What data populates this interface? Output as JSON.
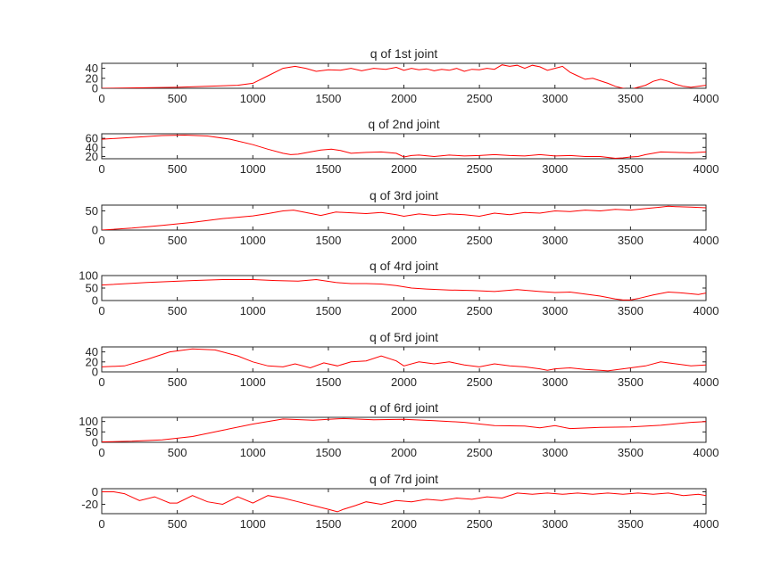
{
  "figure": {
    "background": "#ffffff",
    "line_color": "#ff0000",
    "axis_color": "#262626"
  },
  "chart_data": [
    {
      "type": "line",
      "title": "q of 1st joint",
      "xlim": [
        0,
        4000
      ],
      "ylim": [
        0,
        50
      ],
      "xticks": [
        0,
        500,
        1000,
        1500,
        2000,
        2500,
        3000,
        3500,
        4000
      ],
      "yticks": [
        0,
        20,
        40
      ],
      "x": [
        0,
        500,
        900,
        1000,
        1100,
        1200,
        1280,
        1350,
        1420,
        1500,
        1580,
        1650,
        1720,
        1800,
        1880,
        1950,
        2000,
        2050,
        2100,
        2150,
        2200,
        2250,
        2300,
        2350,
        2400,
        2450,
        2500,
        2550,
        2600,
        2650,
        2700,
        2750,
        2800,
        2850,
        2900,
        2950,
        3000,
        3050,
        3100,
        3150,
        3200,
        3250,
        3300,
        3350,
        3400,
        3450,
        3500,
        3550,
        3600,
        3650,
        3700,
        3750,
        3800,
        3850,
        3900,
        3950,
        4000
      ],
      "y": [
        0,
        2,
        6,
        10,
        25,
        40,
        44,
        40,
        34,
        37,
        36,
        40,
        35,
        40,
        38,
        42,
        36,
        40,
        37,
        39,
        35,
        38,
        36,
        40,
        34,
        38,
        37,
        40,
        38,
        47,
        44,
        46,
        40,
        46,
        43,
        36,
        40,
        44,
        32,
        25,
        18,
        20,
        15,
        10,
        4,
        0,
        -2,
        2,
        6,
        14,
        18,
        14,
        8,
        4,
        2,
        4,
        6
      ]
    },
    {
      "type": "line",
      "title": "q of 2nd joint",
      "xlim": [
        0,
        4000
      ],
      "ylim": [
        15,
        70
      ],
      "xticks": [
        0,
        500,
        1000,
        1500,
        2000,
        2500,
        3000,
        3500,
        4000
      ],
      "yticks": [
        20,
        40,
        60
      ],
      "x": [
        0,
        200,
        400,
        550,
        700,
        850,
        1000,
        1100,
        1200,
        1250,
        1300,
        1380,
        1450,
        1520,
        1580,
        1650,
        1750,
        1850,
        1950,
        2000,
        2050,
        2100,
        2200,
        2300,
        2400,
        2500,
        2600,
        2700,
        2800,
        2900,
        3000,
        3100,
        3200,
        3300,
        3400,
        3450,
        3500,
        3550,
        3600,
        3700,
        3800,
        3900,
        4000
      ],
      "y": [
        58,
        62,
        66,
        67,
        65,
        58,
        46,
        36,
        27,
        24,
        25,
        30,
        34,
        36,
        33,
        27,
        29,
        30,
        27,
        19,
        22,
        23,
        20,
        23,
        21,
        22,
        24,
        22,
        21,
        24,
        21,
        22,
        20,
        20,
        16,
        17,
        19,
        20,
        24,
        30,
        29,
        28,
        30
      ]
    },
    {
      "type": "line",
      "title": "q of 3rd joint",
      "xlim": [
        0,
        4000
      ],
      "ylim": [
        0,
        65
      ],
      "xticks": [
        0,
        500,
        1000,
        1500,
        2000,
        2500,
        3000,
        3500,
        4000
      ],
      "yticks": [
        0,
        50
      ],
      "x": [
        0,
        200,
        400,
        600,
        800,
        1000,
        1100,
        1200,
        1270,
        1350,
        1450,
        1550,
        1650,
        1750,
        1850,
        1950,
        2000,
        2100,
        2200,
        2300,
        2400,
        2500,
        2600,
        2700,
        2800,
        2900,
        3000,
        3100,
        3200,
        3300,
        3400,
        3500,
        3600,
        3700,
        3750,
        3800,
        3900,
        4000
      ],
      "y": [
        0,
        5,
        12,
        20,
        30,
        37,
        43,
        50,
        52,
        46,
        38,
        47,
        45,
        43,
        46,
        40,
        36,
        42,
        38,
        42,
        40,
        36,
        44,
        40,
        46,
        44,
        50,
        48,
        52,
        50,
        54,
        52,
        56,
        60,
        62,
        61,
        60,
        58
      ]
    },
    {
      "type": "line",
      "title": "q of 4rd joint",
      "xlim": [
        0,
        4000
      ],
      "ylim": [
        0,
        100
      ],
      "xticks": [
        0,
        500,
        1000,
        1500,
        2000,
        2500,
        3000,
        3500,
        4000
      ],
      "yticks": [
        0,
        50,
        100
      ],
      "x": [
        0,
        300,
        600,
        800,
        1000,
        1150,
        1300,
        1420,
        1550,
        1650,
        1750,
        1850,
        1950,
        2050,
        2150,
        2300,
        2450,
        2600,
        2750,
        2900,
        3000,
        3100,
        3200,
        3300,
        3400,
        3450,
        3500,
        3550,
        3650,
        3750,
        3850,
        3950,
        4000
      ],
      "y": [
        62,
        72,
        80,
        84,
        84,
        80,
        78,
        84,
        72,
        68,
        68,
        66,
        60,
        50,
        46,
        42,
        40,
        36,
        44,
        36,
        32,
        34,
        26,
        18,
        6,
        2,
        2,
        8,
        22,
        34,
        30,
        24,
        30
      ]
    },
    {
      "type": "line",
      "title": "q of 5rd joint",
      "xlim": [
        0,
        4000
      ],
      "ylim": [
        0,
        50
      ],
      "xticks": [
        0,
        500,
        1000,
        1500,
        2000,
        2500,
        3000,
        3500,
        4000
      ],
      "yticks": [
        0,
        20,
        40
      ],
      "x": [
        0,
        150,
        300,
        450,
        600,
        750,
        900,
        1000,
        1100,
        1200,
        1280,
        1380,
        1470,
        1560,
        1650,
        1750,
        1850,
        1950,
        2000,
        2100,
        2200,
        2300,
        2400,
        2500,
        2600,
        2700,
        2800,
        2900,
        2950,
        3000,
        3100,
        3200,
        3300,
        3350,
        3400,
        3500,
        3600,
        3700,
        3800,
        3900,
        4000
      ],
      "y": [
        10,
        12,
        25,
        40,
        46,
        44,
        32,
        20,
        12,
        10,
        16,
        8,
        18,
        12,
        20,
        22,
        32,
        22,
        12,
        20,
        16,
        20,
        14,
        10,
        16,
        12,
        10,
        6,
        3,
        6,
        8,
        5,
        3,
        2,
        4,
        8,
        12,
        20,
        16,
        12,
        14
      ]
    },
    {
      "type": "line",
      "title": "q of 6rd joint",
      "xlim": [
        0,
        4000
      ],
      "ylim": [
        0,
        120
      ],
      "xticks": [
        0,
        500,
        1000,
        1500,
        2000,
        2500,
        3000,
        3500,
        4000
      ],
      "yticks": [
        0,
        50,
        100
      ],
      "x": [
        0,
        200,
        400,
        600,
        800,
        1000,
        1200,
        1400,
        1500,
        1600,
        1800,
        2000,
        2200,
        2400,
        2600,
        2800,
        2900,
        3000,
        3100,
        3300,
        3500,
        3700,
        3900,
        4000
      ],
      "y": [
        2,
        5,
        12,
        28,
        58,
        88,
        112,
        106,
        110,
        114,
        108,
        110,
        104,
        96,
        80,
        78,
        70,
        80,
        66,
        72,
        74,
        82,
        96,
        100
      ]
    },
    {
      "type": "line",
      "title": "q of 7rd joint",
      "xlim": [
        0,
        4000
      ],
      "ylim": [
        -35,
        5
      ],
      "xticks": [
        0,
        500,
        1000,
        1500,
        2000,
        2500,
        3000,
        3500,
        4000
      ],
      "yticks": [
        -20,
        0
      ],
      "x": [
        0,
        80,
        150,
        250,
        350,
        450,
        500,
        600,
        700,
        800,
        900,
        1000,
        1100,
        1200,
        1300,
        1400,
        1500,
        1560,
        1600,
        1680,
        1750,
        1850,
        1950,
        2050,
        2150,
        2250,
        2350,
        2450,
        2550,
        2650,
        2750,
        2850,
        2950,
        3050,
        3150,
        3250,
        3350,
        3450,
        3550,
        3650,
        3750,
        3850,
        3950,
        4000
      ],
      "y": [
        0,
        0,
        -3,
        -14,
        -8,
        -18,
        -18,
        -6,
        -16,
        -20,
        -8,
        -18,
        -6,
        -10,
        -16,
        -22,
        -28,
        -32,
        -28,
        -22,
        -16,
        -20,
        -14,
        -16,
        -12,
        -14,
        -10,
        -12,
        -8,
        -10,
        -2,
        -4,
        -2,
        -4,
        -2,
        -4,
        -2,
        -4,
        -2,
        -4,
        -2,
        -6,
        -4,
        -6
      ]
    }
  ]
}
